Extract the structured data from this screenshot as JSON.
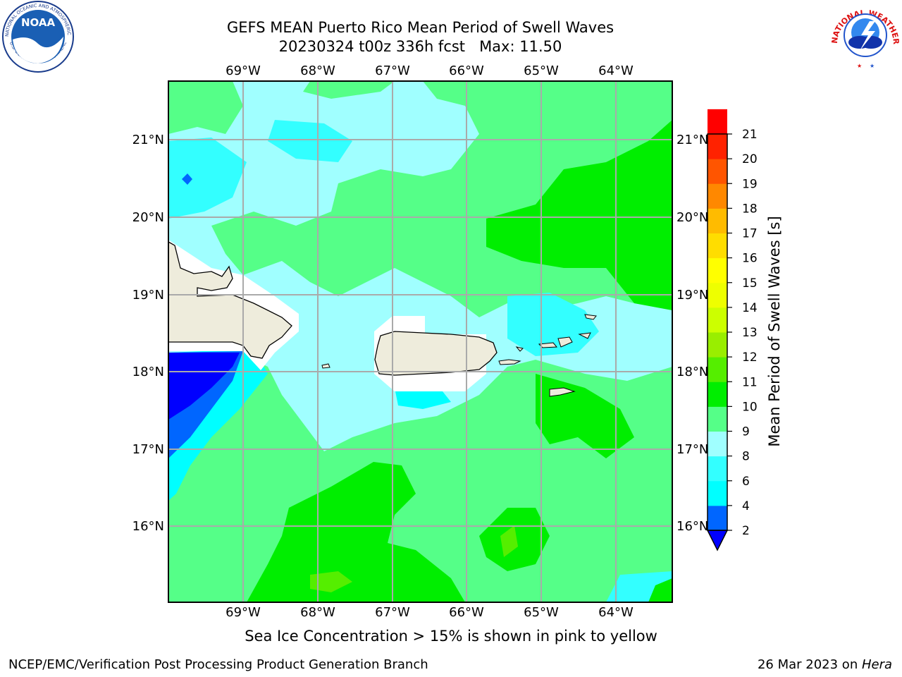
{
  "title": {
    "line1": "GEFS MEAN Puerto Rico Mean Period of Swell Waves",
    "line2": "20230324 t00z 336h fcst   Max: 11.50"
  },
  "map": {
    "lon_labels": [
      "69°W",
      "68°W",
      "67°W",
      "66°W",
      "65°W",
      "64°W"
    ],
    "lat_labels": [
      "21°N",
      "20°N",
      "19°N",
      "18°N",
      "17°N",
      "16°N"
    ],
    "land_color": "#eeecdc",
    "ocean_colors": {
      "lt_cyan": "#a0ffff",
      "lt_green": "#55ff88",
      "green": "#00ee00",
      "cyan": "#33ffff",
      "aqua": "#00ffff",
      "blue": "#0066ff",
      "deep_blue": "#0000ff"
    }
  },
  "colorbar": {
    "label": "Mean Period of Swell Waves [s]",
    "ticks": [
      "2",
      "4",
      "6",
      "8",
      "9",
      "10",
      "11",
      "12",
      "13",
      "14",
      "15",
      "16",
      "17",
      "18",
      "19",
      "20",
      "21"
    ],
    "colors": [
      "#0066ff",
      "#00ffff",
      "#33ffff",
      "#a0ffff",
      "#55ff88",
      "#00ee00",
      "#55ee00",
      "#99ee00",
      "#ccff00",
      "#eeff00",
      "#ffff00",
      "#ffdd00",
      "#ffbb00",
      "#ff8800",
      "#ff5500",
      "#ff2200",
      "#ff0000"
    ],
    "under_color": "#0000ff"
  },
  "logos": {
    "noaa_text": "NOAA",
    "noaa_ring_text": "NATIONAL OCEANIC AND ATMOSPHERIC ADMINISTRATION",
    "noaa_ring_text2": "U.S. DEPARTMENT OF COMMERCE",
    "nws_ring_text": "NATIONAL WEATHER SERVICE"
  },
  "caption": "Sea Ice Concentration > 15% is shown in pink to yellow",
  "footer": {
    "left": "NCEP/EMC/Verification Post Processing Product Generation Branch",
    "right_date": "26 Mar 2023 on ",
    "right_machine": "Hera"
  }
}
